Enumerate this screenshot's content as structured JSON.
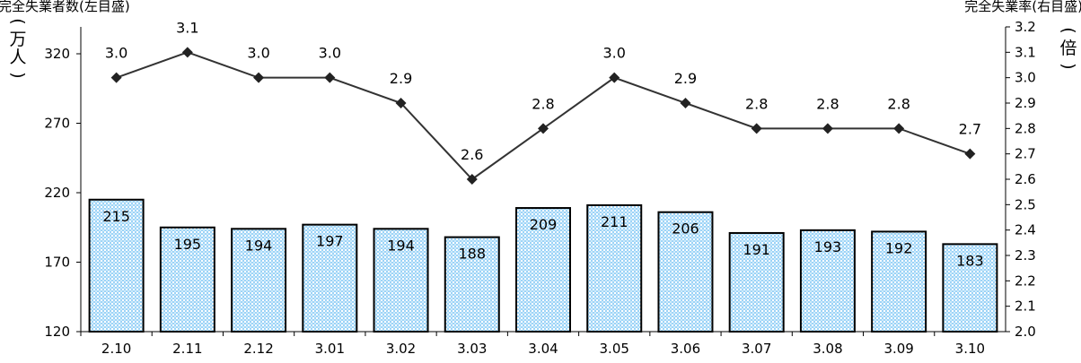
{
  "chart_data": {
    "type": "bar+line",
    "categories": [
      "2.10",
      "2.11",
      "2.12",
      "3.01",
      "3.02",
      "3.03",
      "3.04",
      "3.05",
      "3.06",
      "3.07",
      "3.08",
      "3.09",
      "3.10"
    ],
    "series": [
      {
        "name": "",
        "type": "bar",
        "axis": "left",
        "values": [
          215,
          195,
          194,
          197,
          194,
          188,
          209,
          211,
          206,
          191,
          193,
          192,
          183
        ]
      },
      {
        "name": "",
        "type": "line",
        "axis": "right",
        "values": [
          3.0,
          3.1,
          3.0,
          3.0,
          2.9,
          2.6,
          2.8,
          3.0,
          2.9,
          2.8,
          2.8,
          2.8,
          2.7
        ]
      }
    ],
    "left_axis": {
      "ticks": [
        "120",
        "170",
        "220",
        "270",
        "320"
      ],
      "ylim": [
        120,
        345
      ],
      "unit_label": "(万人)"
    },
    "right_axis": {
      "ticks": [
        "2.0",
        "2.1",
        "2.2",
        "2.3",
        "2.4",
        "2.5",
        "2.6",
        "2.7",
        "2.8",
        "2.9",
        "3.0",
        "3.1",
        "3.2"
      ],
      "ylim": [
        2.0,
        3.2
      ],
      "unit_label": "(倍)"
    },
    "caption_left": "完全失業者数(左目盛)",
    "caption_right": "完全失業率(右目盛)",
    "grid": false,
    "bar_fill_color": "#9dd3f7",
    "line_color": "#333333",
    "marker": "diamond"
  }
}
